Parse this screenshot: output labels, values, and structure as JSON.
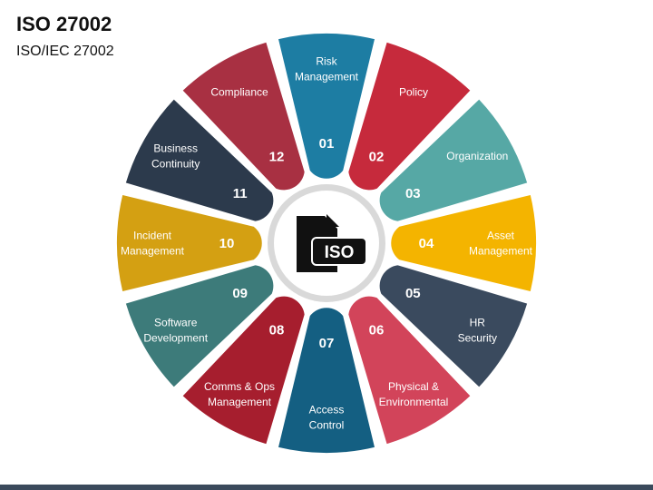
{
  "header": {
    "title": "ISO 27002",
    "subtitle": "ISO/IEC 27002"
  },
  "center": {
    "icon": "iso-document-icon",
    "icon_text": "ISO"
  },
  "segments": [
    {
      "number": "01",
      "label": [
        "Risk",
        "Management"
      ],
      "color": "#1d7da3"
    },
    {
      "number": "02",
      "label": [
        "Policy"
      ],
      "color": "#c62a3c"
    },
    {
      "number": "03",
      "label": [
        "Organization"
      ],
      "color": "#56a8a5"
    },
    {
      "number": "04",
      "label": [
        "Asset",
        "Management"
      ],
      "color": "#f4b400"
    },
    {
      "number": "05",
      "label": [
        "HR",
        "Security"
      ],
      "color": "#3a4a5e"
    },
    {
      "number": "06",
      "label": [
        "Physical &",
        "Environmental"
      ],
      "color": "#d2445a"
    },
    {
      "number": "07",
      "label": [
        "Access",
        "Control"
      ],
      "color": "#145f82"
    },
    {
      "number": "08",
      "label": [
        "Comms & Ops",
        "Management"
      ],
      "color": "#a61e2e"
    },
    {
      "number": "09",
      "label": [
        "Software",
        "Development"
      ],
      "color": "#3d7b7a"
    },
    {
      "number": "10",
      "label": [
        "Incident",
        "Management"
      ],
      "color": "#d4a012"
    },
    {
      "number": "11",
      "label": [
        "Business",
        "Continuity"
      ],
      "color": "#2c3a4c"
    },
    {
      "number": "12",
      "label": [
        "Compliance"
      ],
      "color": "#a83042"
    }
  ]
}
